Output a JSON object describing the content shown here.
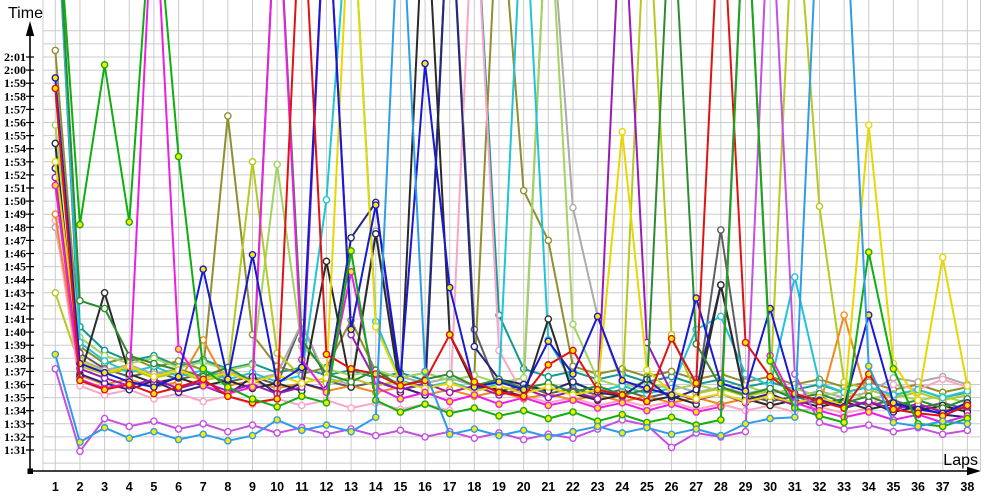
{
  "y_axis_title": "Time",
  "x_axis_title": "Laps",
  "y_tick_labels": [
    "2:01",
    "2:00",
    "1:59",
    "1:58",
    "1:57",
    "1:56",
    "1:55",
    "1:54",
    "1:53",
    "1:52",
    "1:51",
    "1:50",
    "1:49",
    "1:48",
    "1:47",
    "1:46",
    "1:45",
    "1:44",
    "1:43",
    "1:42",
    "1:41",
    "1:40",
    "1:39",
    "1:38",
    "1:37",
    "1:36",
    "1:35",
    "1:34",
    "1:33",
    "1:32",
    "1:31"
  ],
  "x_tick_labels": [
    "1",
    "2",
    "3",
    "4",
    "5",
    "6",
    "7",
    "8",
    "9",
    "10",
    "11",
    "12",
    "13",
    "14",
    "15",
    "16",
    "17",
    "18",
    "19",
    "20",
    "21",
    "22",
    "23",
    "24",
    "25",
    "26",
    "27",
    "28",
    "29",
    "30",
    "31",
    "32",
    "33",
    "34",
    "35",
    "36",
    "37",
    "38"
  ],
  "colors": {
    "grid": "#cbcbcb",
    "axis": "#000000",
    "background": "#ffffff",
    "marker_yellow": "#ffe800",
    "marker_white": "#ffffff"
  },
  "chart_data": {
    "type": "line",
    "title": "",
    "xlabel": "Laps",
    "ylabel": "Time",
    "x": [
      1,
      2,
      3,
      4,
      5,
      6,
      7,
      8,
      9,
      10,
      11,
      12,
      13,
      14,
      15,
      16,
      17,
      18,
      19,
      20,
      21,
      22,
      23,
      24,
      25,
      26,
      27,
      28,
      29,
      30,
      31,
      32,
      33,
      34,
      35,
      36,
      37,
      38
    ],
    "y_unit": "lap time in seconds (1:31 = 91s ... 2:01 = 121s)",
    "ylim_visible_seconds": [
      90,
      123
    ],
    "off_scale_value": 135,
    "off_scale_meaning": "spike exceeds top of chart (pit stop / incident lap)",
    "grid": true,
    "legend": "none visible",
    "series": [
      {
        "name": "teal",
        "color": "#129a93",
        "marker_fill": "#ffffff",
        "values": [
          135,
          100.4,
          98.6,
          97.8,
          98.2,
          97.4,
          97.9,
          97.2,
          97.6,
          96.9,
          97.3,
          96.7,
          97.1,
          96.5,
          96.9,
          96.3,
          135,
          135,
          101.3,
          97.2,
          96.6,
          97.0,
          96.4,
          96.8,
          96.2,
          96.6,
          96.0,
          96.4,
          95.8,
          96.2,
          95.6,
          96.0,
          95.4,
          95.8,
          95.2,
          95.6,
          95.0,
          95.4
        ]
      },
      {
        "name": "olive",
        "color": "#8f8f2e",
        "marker_fill": "#ffffff",
        "values": [
          121.5,
          98.9,
          97.6,
          98.1,
          97.3,
          97.8,
          97.1,
          116.5,
          99.8,
          97.4,
          96.8,
          97.3,
          100.9,
          97.0,
          96.5,
          96.9,
          96.3,
          96.7,
          135,
          110.8,
          107.0,
          97.4,
          96.8,
          97.2,
          96.6,
          97.0,
          96.4,
          96.8,
          96.2,
          96.6,
          96.0,
          96.4,
          95.8,
          96.2,
          95.6,
          96.0,
          95.4,
          95.8
        ]
      },
      {
        "name": "dark-gray",
        "color": "#5f5f5f",
        "marker_fill": "#ffffff",
        "values": [
          135,
          98.4,
          97.2,
          96.6,
          97.0,
          96.4,
          96.8,
          96.2,
          96.6,
          96.0,
          100.7,
          96.3,
          95.8,
          96.2,
          95.6,
          96.0,
          135,
          100.2,
          95.5,
          95.9,
          95.3,
          95.7,
          95.2,
          95.6,
          95.0,
          95.4,
          94.9,
          107.8,
          95.2,
          94.7,
          95.1,
          94.5,
          94.9,
          94.4,
          94.8,
          94.2,
          94.6,
          94.1
        ]
      },
      {
        "name": "silver",
        "color": "#ababab",
        "marker_fill": "#ffffff",
        "values": [
          108.0,
          97.9,
          97.1,
          97.5,
          96.8,
          97.2,
          96.6,
          97.0,
          96.4,
          96.8,
          100.7,
          96.5,
          96.0,
          107.7,
          96.6,
          96.1,
          96.5,
          95.9,
          96.3,
          95.7,
          135,
          109.5,
          101.2,
          96.1,
          95.6,
          96.0,
          95.4,
          95.8,
          95.3,
          95.7,
          95.1,
          95.5,
          95.0,
          95.4,
          96.5,
          96.2,
          96.6,
          96.0
        ]
      },
      {
        "name": "light-green",
        "color": "#a2d45e",
        "marker_fill": "#ffffff",
        "values": [
          115.8,
          99.6,
          98.2,
          97.6,
          98.0,
          97.3,
          97.7,
          97.1,
          97.5,
          112.8,
          98.9,
          97.2,
          96.7,
          97.1,
          96.5,
          96.9,
          96.3,
          96.7,
          96.1,
          96.5,
          135,
          100.6,
          96.4,
          95.8,
          96.2,
          95.6,
          96.0,
          95.5,
          95.9,
          95.3,
          95.7,
          95.1,
          95.5,
          94.9,
          95.3,
          94.8,
          95.1,
          94.6
        ]
      },
      {
        "name": "yellow-green",
        "color": "#b5c920",
        "marker_fill": "#ffffff",
        "values": [
          103.0,
          97.4,
          96.8,
          97.2,
          96.5,
          96.9,
          96.3,
          96.7,
          113.0,
          98.4,
          96.6,
          96.1,
          96.5,
          95.9,
          96.3,
          95.7,
          96.1,
          95.5,
          95.9,
          95.4,
          95.8,
          95.2,
          95.6,
          95.0,
          135,
          99.8,
          95.3,
          95.7,
          95.1,
          95.5,
          135,
          109.6,
          96.2,
          95.6,
          95.0,
          95.4,
          94.8,
          95.2
        ]
      },
      {
        "name": "pink",
        "color": "#fba4c8",
        "marker_fill": "#ffffff",
        "values": [
          108.5,
          95.9,
          95.2,
          95.6,
          94.9,
          95.3,
          94.7,
          95.1,
          94.5,
          94.9,
          94.4,
          94.8,
          94.2,
          94.6,
          94.1,
          94.5,
          94.0,
          135,
          98.6,
          95.2,
          94.6,
          95.0,
          94.4,
          94.8,
          94.3,
          94.7,
          94.1,
          94.5,
          94.0,
          94.4,
          93.9,
          94.3,
          93.8,
          94.2,
          96.0,
          95.6,
          96.4,
          95.8
        ]
      },
      {
        "name": "orange",
        "color": "#f2881e",
        "marker_fill": "#ffffff",
        "values": [
          109.0,
          96.7,
          96.0,
          96.4,
          95.8,
          96.2,
          99.4,
          95.9,
          96.3,
          95.7,
          96.1,
          95.5,
          95.9,
          95.4,
          95.8,
          95.2,
          95.6,
          95.1,
          95.5,
          94.9,
          95.3,
          94.8,
          95.2,
          94.7,
          95.1,
          94.6,
          95.0,
          94.5,
          94.9,
          94.4,
          94.8,
          94.3,
          101.3,
          94.6,
          94.1,
          94.5,
          94.0,
          94.4
        ]
      },
      {
        "name": "cyan",
        "color": "#20c4d6",
        "marker_fill": "#ffffff",
        "values": [
          135,
          99.2,
          97.8,
          96.9,
          97.4,
          96.6,
          97.1,
          96.4,
          96.9,
          96.2,
          96.7,
          110.1,
          135,
          100.8,
          96.3,
          95.8,
          96.2,
          95.6,
          96.0,
          135,
          99.4,
          96.1,
          95.5,
          95.9,
          95.3,
          95.7,
          100.2,
          101.2,
          96.8,
          95.9,
          104.2,
          96.1,
          95.4,
          95.8,
          95.2,
          95.6,
          95.0,
          95.5
        ]
      },
      {
        "name": "navy",
        "color": "#26267d",
        "marker_fill": "#ffffff",
        "values": [
          112.5,
          96.8,
          96.1,
          95.6,
          96.3,
          95.4,
          95.9,
          95.2,
          96.6,
          95.3,
          96.1,
          95.6,
          107.2,
          109.9,
          95.8,
          95.2,
          135,
          98.9,
          96.4,
          96.0,
          95.5,
          96.2,
          95.4,
          95.1,
          96.4,
          94.9,
          95.6,
          103.6,
          94.8,
          95.3,
          94.5,
          95.1,
          94.2,
          94.7,
          93.9,
          94.3,
          93.7,
          93.5
        ]
      },
      {
        "name": "black",
        "color": "#2a2a2a",
        "marker_fill": "#ffffff",
        "values": [
          114.4,
          96.6,
          103.0,
          96.8,
          96.1,
          96.5,
          95.9,
          96.3,
          95.7,
          96.1,
          95.5,
          105.4,
          95.8,
          107.5,
          95.4,
          135,
          99.8,
          95.9,
          95.6,
          95.1,
          101.0,
          95.3,
          94.8,
          95.2,
          94.7,
          95.1,
          94.5,
          103.6,
          94.9,
          94.4,
          94.8,
          94.3,
          94.7,
          94.1,
          94.5,
          94.0,
          94.4,
          93.9
        ]
      },
      {
        "name": "purple",
        "color": "#9b1bb8",
        "marker_fill": "#ffffff",
        "values": [
          111.8,
          97.2,
          96.5,
          95.9,
          96.4,
          95.7,
          96.2,
          95.5,
          96.0,
          95.3,
          95.8,
          135,
          99.8,
          96.3,
          95.6,
          96.1,
          95.4,
          95.9,
          95.2,
          95.7,
          95.0,
          95.5,
          94.9,
          135,
          99.2,
          95.4,
          94.8,
          95.3,
          94.6,
          95.1,
          94.4,
          94.9,
          94.3,
          94.7,
          94.1,
          94.5,
          93.9,
          94.3
        ]
      },
      {
        "name": "dark-green",
        "color": "#2e8b32",
        "marker_fill": "#ffffff",
        "values": [
          135,
          102.4,
          101.8,
          98.2,
          97.6,
          97.1,
          96.6,
          97.3,
          96.2,
          135,
          99.4,
          96.8,
          96.2,
          97.1,
          95.9,
          96.4,
          96.8,
          95.9,
          96.4,
          95.7,
          96.1,
          95.4,
          95.9,
          95.2,
          95.6,
          135,
          99.1,
          95.8,
          95.2,
          95.7,
          94.9,
          95.3,
          94.6,
          95.1,
          94.4,
          94.8,
          94.2,
          94.9
        ]
      },
      {
        "name": "yellow",
        "color": "#e6d800",
        "marker_fill": "#ffffff",
        "values": [
          113.0,
          97.8,
          96.9,
          97.4,
          96.6,
          97.1,
          96.4,
          96.9,
          96.2,
          96.7,
          96.1,
          96.5,
          135,
          100.4,
          96.2,
          95.7,
          96.1,
          95.5,
          95.9,
          95.3,
          95.8,
          95.2,
          95.6,
          115.3,
          97.1,
          95.4,
          94.9,
          95.3,
          94.7,
          95.1,
          94.6,
          95.0,
          94.4,
          115.8,
          97.6,
          94.8,
          105.7,
          95.9
        ]
      },
      {
        "name": "magenta",
        "color": "#ea1fe2",
        "marker_fill": "#ffe800",
        "values": [
          111.2,
          96.4,
          95.7,
          96.1,
          135,
          98.7,
          95.9,
          95.3,
          95.8,
          135,
          97.9,
          95.4,
          104.6,
          95.8,
          94.9,
          95.4,
          94.7,
          95.2,
          94.5,
          95.0,
          94.4,
          94.8,
          94.2,
          94.6,
          94.0,
          94.5,
          93.9,
          94.3,
          135,
          98.2,
          94.6,
          94.0,
          93.5,
          93.9,
          93.3,
          93.7,
          93.1,
          93.6
        ]
      },
      {
        "name": "violet",
        "color": "#c44fe0",
        "marker_fill": "#ffffff",
        "values": [
          97.2,
          90.9,
          93.4,
          92.8,
          93.2,
          92.6,
          93.0,
          92.4,
          92.9,
          92.3,
          92.7,
          92.2,
          92.6,
          92.1,
          92.5,
          92.0,
          92.4,
          91.9,
          92.3,
          91.8,
          92.2,
          91.9,
          92.6,
          93.3,
          92.9,
          91.2,
          92.3,
          92.0,
          92.4,
          135,
          96.8,
          93.1,
          92.6,
          92.9,
          92.4,
          92.7,
          92.2,
          92.5
        ]
      },
      {
        "name": "blue",
        "color": "#1919d2",
        "marker_fill": "#ffe800",
        "values": [
          119.4,
          97.6,
          96.9,
          96.2,
          95.8,
          96.6,
          104.8,
          96.4,
          105.9,
          96.1,
          97.3,
          135,
          100.2,
          109.7,
          96.4,
          120.5,
          103.4,
          95.8,
          96.2,
          95.6,
          99.3,
          96.8,
          101.2,
          96.3,
          95.7,
          95.2,
          102.6,
          96.1,
          95.5,
          101.8,
          95.2,
          94.8,
          94.3,
          101.3,
          94.6,
          94.1,
          93.8,
          94.6
        ]
      },
      {
        "name": "red",
        "color": "#e11212",
        "marker_fill": "#ffe800",
        "values": [
          118.6,
          96.3,
          95.6,
          96.0,
          95.3,
          95.8,
          96.4,
          95.1,
          94.6,
          94.9,
          135,
          98.3,
          97.2,
          96.8,
          95.9,
          96.3,
          99.8,
          96.2,
          95.4,
          95.1,
          97.5,
          98.6,
          95.6,
          95.2,
          94.7,
          99.5,
          96.1,
          135,
          99.2,
          96.6,
          95.3,
          94.7,
          94.2,
          96.8,
          94.1,
          93.8,
          93.6,
          94.4
        ]
      },
      {
        "name": "green",
        "color": "#0fae0f",
        "marker_fill": "#ffe800",
        "values": [
          135,
          108.2,
          120.4,
          108.4,
          135,
          113.4,
          97.2,
          95.8,
          94.9,
          94.3,
          95.1,
          94.6,
          106.2,
          94.8,
          93.9,
          94.5,
          93.8,
          94.2,
          93.6,
          94.0,
          93.4,
          93.9,
          93.2,
          93.7,
          93.1,
          93.5,
          92.9,
          93.3,
          135,
          97.8,
          94.2,
          93.6,
          93.1,
          106.1,
          97.2,
          93.0,
          92.8,
          93.4
        ]
      },
      {
        "name": "sky-blue",
        "color": "#2f9ce8",
        "marker_fill": "#ffe800",
        "values": [
          98.3,
          91.6,
          92.7,
          91.9,
          92.4,
          91.8,
          92.2,
          91.7,
          92.1,
          93.3,
          92.5,
          92.9,
          92.4,
          93.5,
          135,
          97.0,
          92.2,
          92.6,
          92.1,
          92.5,
          92.0,
          92.4,
          92.8,
          92.3,
          92.7,
          92.2,
          92.6,
          92.1,
          93.0,
          93.4,
          93.5,
          135,
          135,
          97.4,
          93.1,
          92.8,
          93.2,
          93.0
        ]
      }
    ]
  }
}
